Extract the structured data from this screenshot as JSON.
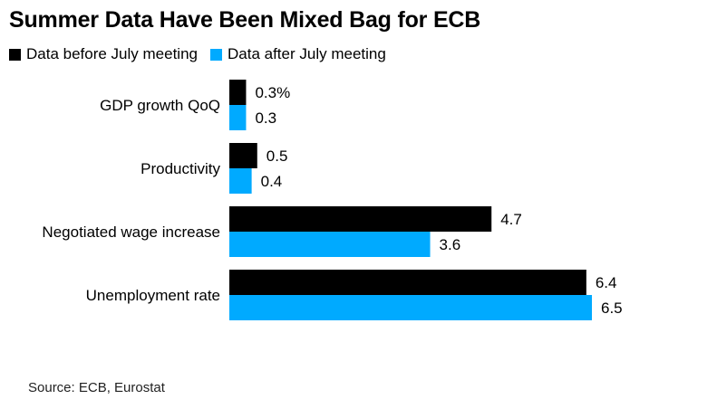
{
  "chart_data": {
    "type": "bar",
    "orientation": "horizontal",
    "title": "Summer Data Have Been Mixed Bag for ECB",
    "categories": [
      "GDP growth QoQ",
      "Productivity",
      "Negotiated wage increase",
      "Unemployment rate"
    ],
    "series": [
      {
        "name": "Data before July meeting",
        "color": "#000000",
        "values": [
          0.3,
          0.5,
          4.7,
          6.4
        ],
        "labels": [
          "0.3%",
          "0.5",
          "4.7",
          "6.4"
        ]
      },
      {
        "name": "Data after July meeting",
        "color": "#00aaff",
        "values": [
          0.3,
          0.4,
          3.6,
          6.5
        ],
        "labels": [
          "0.3",
          "0.4",
          "3.6",
          "6.5"
        ]
      }
    ],
    "xlim": [
      0,
      6.5
    ],
    "grid": false,
    "legend_position": "top-left",
    "source": "Source: ECB, Eurostat"
  }
}
